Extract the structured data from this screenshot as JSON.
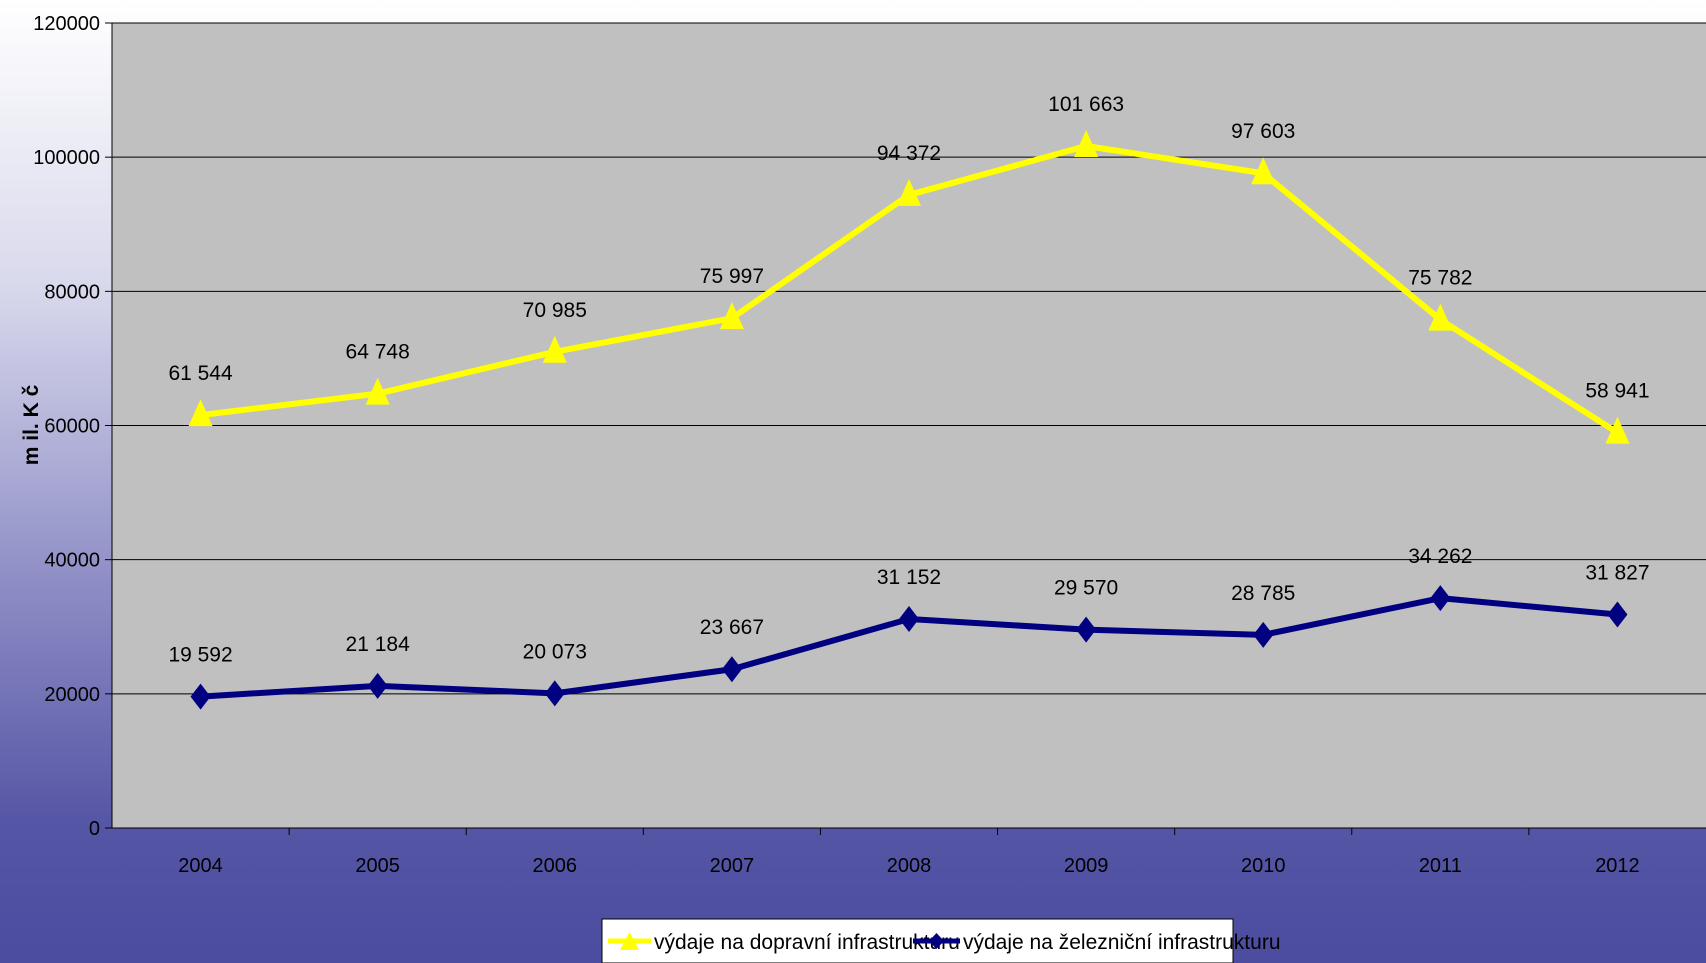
{
  "chart_data": {
    "type": "line",
    "title": "",
    "xlabel": "",
    "ylabel": "m il. K č",
    "categories": [
      "2004",
      "2005",
      "2006",
      "2007",
      "2008",
      "2009",
      "2010",
      "2011",
      "2012"
    ],
    "ylim": [
      0,
      120000
    ],
    "yticks": [
      0,
      20000,
      40000,
      60000,
      80000,
      100000,
      120000
    ],
    "grid": true,
    "legend_position": "bottom-center",
    "plot_background": "#c0c0c0",
    "series": [
      {
        "name": "výdaje na dopravní infrastrukturu",
        "color": "#ffff00",
        "marker": "triangle",
        "values": [
          61544,
          64748,
          70985,
          75997,
          94372,
          101663,
          97603,
          75782,
          58941
        ],
        "labels": [
          "61 544",
          "64 748",
          "70 985",
          "75 997",
          "94 372",
          "101 663",
          "97 603",
          "75 782",
          "58 941"
        ]
      },
      {
        "name": "výdaje na železniční infrastrukturu",
        "color": "#000080",
        "marker": "diamond",
        "values": [
          19592,
          21184,
          20073,
          23667,
          31152,
          29570,
          28785,
          34262,
          31827
        ],
        "labels": [
          "19 592",
          "21 184",
          "20 073",
          "23 667",
          "31 152",
          "29 570",
          "28 785",
          "34 262",
          "31 827"
        ]
      }
    ]
  }
}
